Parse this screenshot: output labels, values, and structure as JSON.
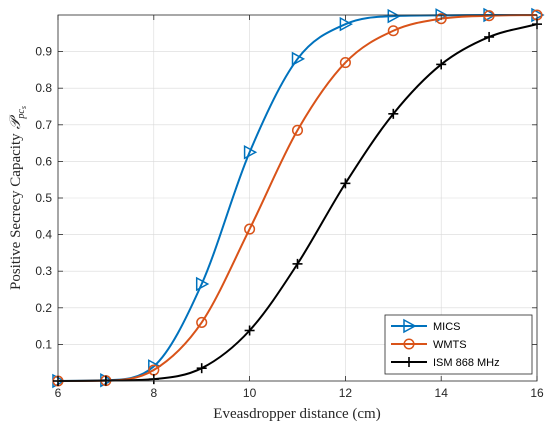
{
  "chart_data": {
    "type": "line",
    "title": "",
    "xlabel": "Eveasdropper distance (cm)",
    "ylabel": "Positive Secrecy Capacity",
    "ylabel_symbol": "𝒫",
    "ylabel_subscript": "pc",
    "ylabel_subsubscript": "s",
    "xlim": [
      6,
      16
    ],
    "ylim": [
      0,
      1
    ],
    "xticks": [
      6,
      8,
      10,
      12,
      14,
      16
    ],
    "yticks": [
      0.1,
      0.2,
      0.3,
      0.4,
      0.5,
      0.6,
      0.7,
      0.8,
      0.9
    ],
    "grid": true,
    "legend_position": "bottom-right",
    "series": [
      {
        "name": "MICS",
        "color": "#0072BD",
        "marker": "triangle-right",
        "x": [
          6,
          7,
          8,
          9,
          10,
          11,
          12,
          13,
          14,
          15,
          16
        ],
        "y": [
          0.0,
          0.002,
          0.04,
          0.265,
          0.625,
          0.88,
          0.975,
          0.997,
          0.999,
          1.0,
          1.0
        ]
      },
      {
        "name": "WMTS",
        "color": "#D95319",
        "marker": "circle",
        "x": [
          6,
          7,
          8,
          9,
          10,
          11,
          12,
          13,
          14,
          15,
          16
        ],
        "y": [
          0.0,
          0.001,
          0.03,
          0.16,
          0.415,
          0.685,
          0.87,
          0.957,
          0.99,
          0.998,
          1.0
        ]
      },
      {
        "name": "ISM 868 MHz",
        "color": "#000000",
        "marker": "plus",
        "x": [
          6,
          7,
          8,
          9,
          10,
          11,
          12,
          13,
          14,
          15,
          16
        ],
        "y": [
          0.0,
          0.001,
          0.005,
          0.035,
          0.138,
          0.32,
          0.54,
          0.73,
          0.865,
          0.94,
          0.975
        ]
      }
    ]
  }
}
